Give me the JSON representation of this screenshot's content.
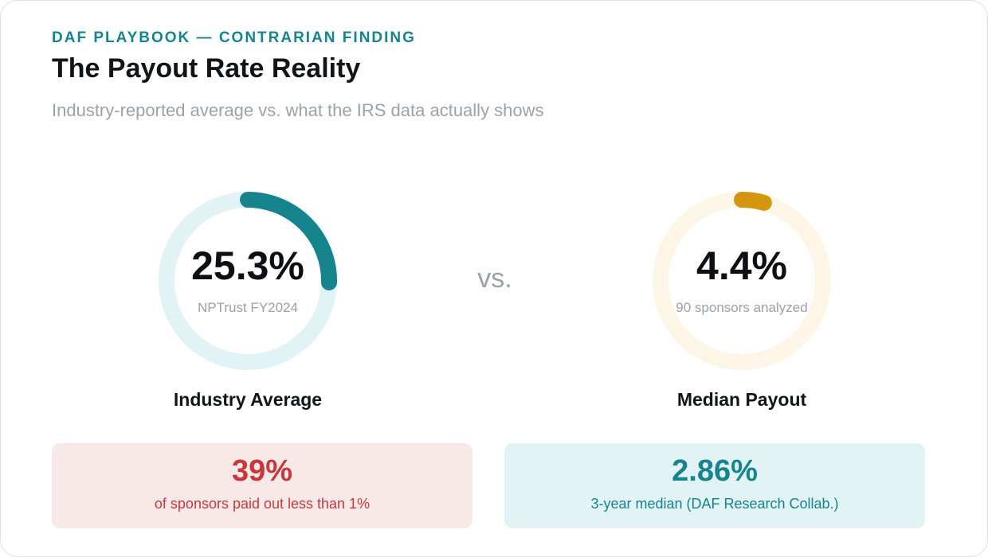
{
  "header": {
    "eyebrow": "DAF PLAYBOOK — CONTRARIAN FINDING",
    "title": "The Payout Rate Reality",
    "subtitle": "Industry-reported average vs. what the IRS data actually shows"
  },
  "comparison": {
    "vs_label": "vs.",
    "industry": {
      "value_label": "25.3%",
      "value": 25.3,
      "source": "NPTrust FY2024",
      "caption": "Industry Average",
      "color": "#16848c",
      "track_color": "#e1f3f5"
    },
    "median": {
      "value_label": "4.4%",
      "value": 4.4,
      "source": "90 sponsors analyzed",
      "caption": "Median Payout",
      "color": "#d4960f",
      "track_color": "#fdf5e6"
    }
  },
  "stats": {
    "left": {
      "value": "39%",
      "label": "of sponsors paid out less than 1%",
      "color": "#c8373a",
      "background": "#f8e9e9"
    },
    "right": {
      "value": "2.86%",
      "label": "3-year median (DAF Research Collab.)",
      "color": "#16848c",
      "background": "#e1f3f5"
    }
  }
}
